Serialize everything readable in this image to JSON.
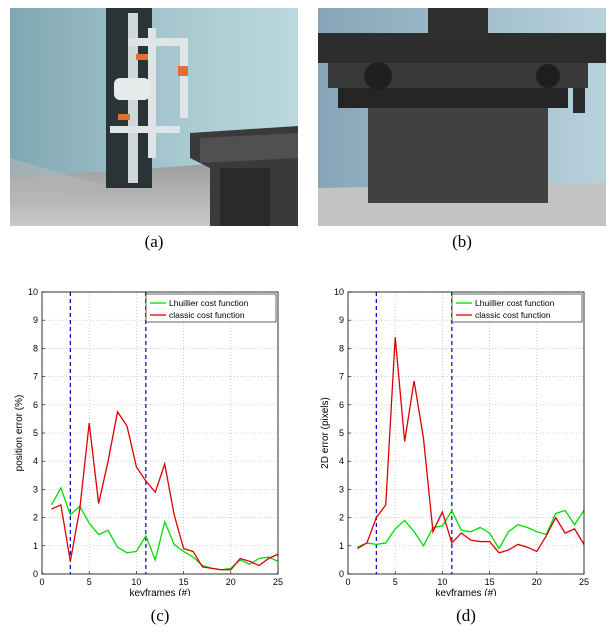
{
  "captions": {
    "a": "(a)",
    "b": "(b)",
    "c": "(c)",
    "d": "(d)"
  },
  "chart_data": [
    {
      "type": "line",
      "xlabel": "keyframes (#)",
      "ylabel": "position error (%)",
      "xlim": [
        0,
        25
      ],
      "ylim": [
        0,
        10
      ],
      "xticks": [
        0,
        5,
        10,
        15,
        20,
        25
      ],
      "yticks": [
        0,
        1,
        2,
        3,
        4,
        5,
        6,
        7,
        8,
        9,
        10
      ],
      "grid": true,
      "legend_position": "top-right",
      "vlines": [
        3,
        11
      ],
      "series": [
        {
          "name": "Lhuillier cost function",
          "color": "#00dd00",
          "x": [
            1,
            2,
            3,
            4,
            5,
            6,
            7,
            8,
            9,
            10,
            11,
            12,
            13,
            14,
            15,
            16,
            17,
            18,
            19,
            20,
            21,
            22,
            23,
            24,
            25
          ],
          "y": [
            2.45,
            3.05,
            2.1,
            2.4,
            1.8,
            1.4,
            1.55,
            0.95,
            0.75,
            0.8,
            1.35,
            0.5,
            1.85,
            1.05,
            0.8,
            0.6,
            0.3,
            0.2,
            0.15,
            0.2,
            0.5,
            0.35,
            0.55,
            0.6,
            0.45
          ]
        },
        {
          "name": "classic cost function",
          "color": "#dd0000",
          "x": [
            1,
            2,
            3,
            4,
            5,
            6,
            7,
            8,
            9,
            10,
            11,
            12,
            13,
            14,
            15,
            16,
            17,
            18,
            19,
            20,
            21,
            22,
            23,
            24,
            25
          ],
          "y": [
            2.3,
            2.45,
            0.45,
            2.3,
            5.35,
            2.5,
            4.0,
            5.75,
            5.25,
            3.8,
            3.3,
            2.9,
            3.9,
            2.1,
            0.9,
            0.8,
            0.25,
            0.2,
            0.15,
            0.15,
            0.55,
            0.45,
            0.3,
            0.55,
            0.7
          ]
        }
      ]
    },
    {
      "type": "line",
      "xlabel": "keyframes (#)",
      "ylabel": "2D error (pixels)",
      "xlim": [
        0,
        25
      ],
      "ylim": [
        0,
        10
      ],
      "xticks": [
        0,
        5,
        10,
        15,
        20,
        25
      ],
      "yticks": [
        0,
        1,
        2,
        3,
        4,
        5,
        6,
        7,
        8,
        9,
        10
      ],
      "grid": true,
      "legend_position": "top-right",
      "vlines": [
        3,
        11
      ],
      "series": [
        {
          "name": "Lhuillier cost function",
          "color": "#00dd00",
          "x": [
            1,
            2,
            3,
            4,
            5,
            6,
            7,
            8,
            9,
            10,
            11,
            12,
            13,
            14,
            15,
            16,
            17,
            18,
            19,
            20,
            21,
            22,
            23,
            24,
            25
          ],
          "y": [
            0.95,
            1.1,
            1.05,
            1.1,
            1.6,
            1.9,
            1.5,
            1.0,
            1.65,
            1.7,
            2.25,
            1.55,
            1.5,
            1.65,
            1.45,
            0.9,
            1.5,
            1.75,
            1.65,
            1.5,
            1.4,
            2.15,
            2.25,
            1.75,
            2.25
          ]
        },
        {
          "name": "classic cost function",
          "color": "#dd0000",
          "x": [
            1,
            2,
            3,
            4,
            5,
            6,
            7,
            8,
            9,
            10,
            11,
            12,
            13,
            14,
            15,
            16,
            17,
            18,
            19,
            20,
            21,
            22,
            23,
            24,
            25
          ],
          "y": [
            0.9,
            1.1,
            2.0,
            2.45,
            8.4,
            4.7,
            6.85,
            4.8,
            1.5,
            2.2,
            1.1,
            1.45,
            1.2,
            1.15,
            1.15,
            0.75,
            0.85,
            1.05,
            0.95,
            0.8,
            1.35,
            2.0,
            1.45,
            1.6,
            1.05
          ]
        }
      ]
    }
  ]
}
